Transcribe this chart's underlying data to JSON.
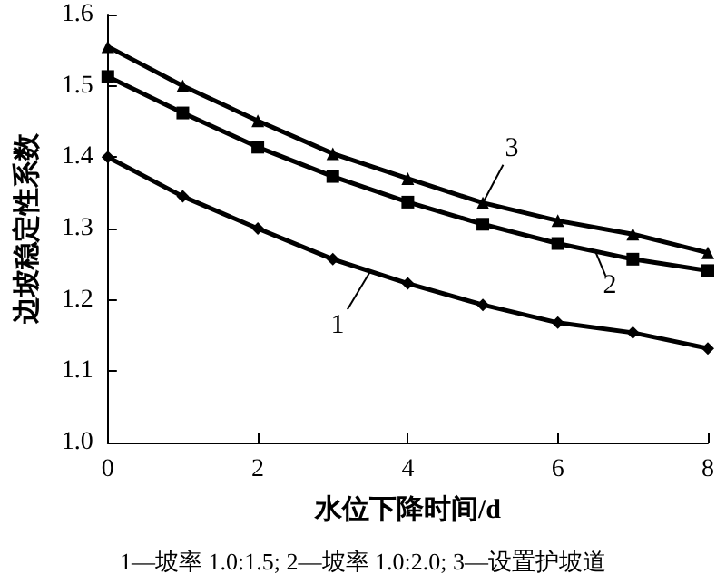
{
  "chart_data": {
    "type": "line",
    "xlabel": "水位下降时间/d",
    "ylabel": "边坡稳定性系数",
    "x": [
      0,
      1,
      2,
      3,
      4,
      5,
      6,
      7,
      8
    ],
    "series": [
      {
        "name": "1",
        "color": "#000000",
        "marker": "diamond",
        "values": [
          1.4,
          1.345,
          1.3,
          1.257,
          1.223,
          1.193,
          1.168,
          1.154,
          1.132
        ]
      },
      {
        "name": "2",
        "color": "#000000",
        "marker": "square",
        "values": [
          1.513,
          1.462,
          1.414,
          1.373,
          1.337,
          1.306,
          1.279,
          1.257,
          1.241
        ]
      },
      {
        "name": "3",
        "color": "#000000",
        "marker": "triangle",
        "values": [
          1.555,
          1.5,
          1.451,
          1.405,
          1.37,
          1.336,
          1.311,
          1.292,
          1.266
        ]
      }
    ],
    "xlim": [
      0,
      8
    ],
    "xticks": [
      0,
      2,
      4,
      6,
      8
    ],
    "ylim": [
      1.0,
      1.6
    ],
    "yticks": [
      {
        "value": 1.0,
        "label": "1.0"
      },
      {
        "value": 1.1,
        "label": "1.1"
      },
      {
        "value": 1.2,
        "label": "1.2"
      },
      {
        "value": 1.3,
        "label": "1.3"
      },
      {
        "value": 1.4,
        "label": "1.4"
      },
      {
        "value": 1.5,
        "label": "1.5"
      },
      {
        "value": 1.6,
        "label": "1.6"
      }
    ],
    "grid": false,
    "legend": "center",
    "line_style": "solid",
    "annotations": [
      "1—坡率 1.0:1.5; 2—坡率 1.0:2.0; 3—设置护坡道"
    ]
  }
}
